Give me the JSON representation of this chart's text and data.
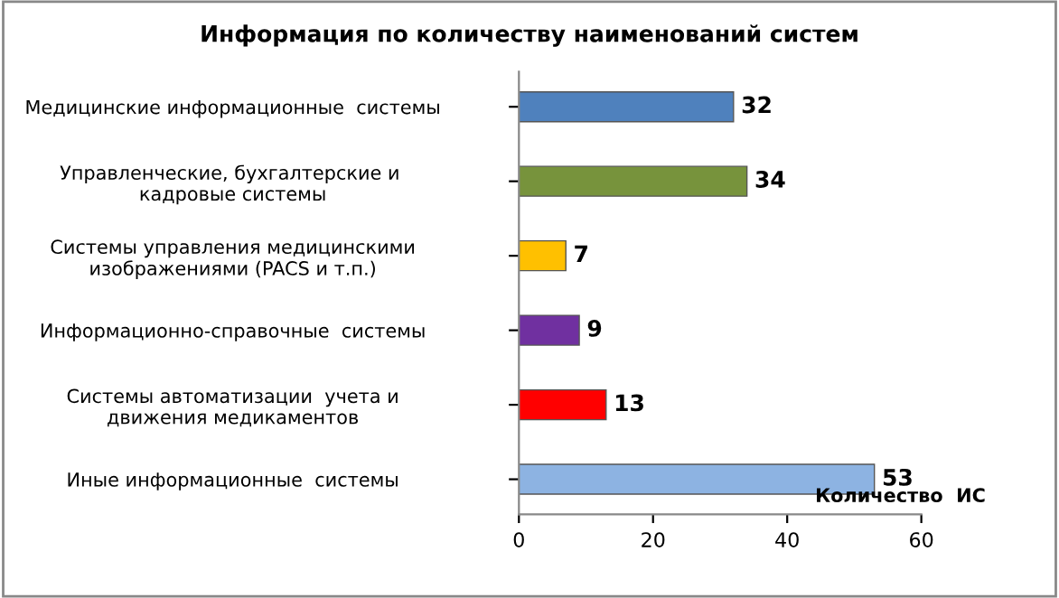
{
  "chart_data": {
    "type": "bar",
    "orientation": "horizontal",
    "title": "Информация по количеству наименований систем",
    "categories": [
      "Медицинские информационные  системы",
      "Управленческие, бухгалтерские и  кадровые системы",
      "Системы управления медицинскими изображениями (PACS и т.п.)",
      "Информационно-справочные  системы",
      "Системы автоматизации  учета и движения медикаментов",
      "Иные информационные  системы"
    ],
    "values": [
      32,
      34,
      7,
      9,
      13,
      53
    ],
    "colors": [
      "#4f81bd",
      "#77933c",
      "#ffc000",
      "#7030a0",
      "#ff0000",
      "#8db3e2"
    ],
    "xlabel": "Количество  ИС",
    "xlim": [
      0,
      60
    ],
    "xticks": [
      0,
      20,
      40,
      60
    ],
    "data_labels": true
  }
}
